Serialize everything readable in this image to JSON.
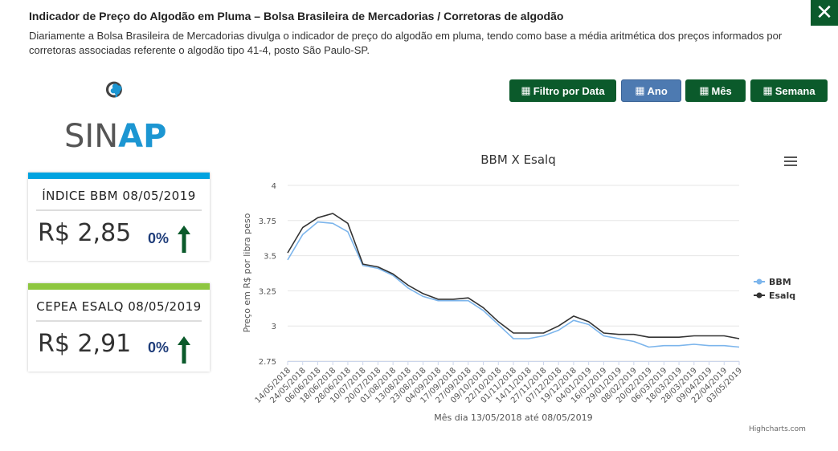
{
  "header": {
    "title": "Indicador de Preço do Algodão em Pluma – Bolsa Brasileira de Mercadorias / Corretoras de algodão",
    "description": "Diariamente a Bolsa Brasileira de Mercadorias divulga o indicador de preço do algodão em pluma, tendo como base a média aritmética dos preços informados por corretoras associadas referente o algodão tipo 41-4, posto São Paulo-SP.",
    "close_label": "✕"
  },
  "logo": {
    "sin": "SIN",
    "ap": "AP"
  },
  "cards": [
    {
      "title": "ÍNDICE BBM 08/05/2019",
      "value": "R$ 2,85",
      "change": "0%",
      "trend": "up-arrow-icon",
      "accent": "#00a3e0"
    },
    {
      "title": "CEPEA ESALQ 08/05/2019",
      "value": "R$ 2,91",
      "change": "0%",
      "trend": "up-arrow-icon",
      "accent": "#8dc63f"
    }
  ],
  "filters": {
    "date": "Filtro por Data",
    "year": "Ano",
    "month": "Mês",
    "week": "Semana",
    "active": "year"
  },
  "colors": {
    "bbm": "#7cb5ec",
    "esalq": "#333333",
    "green": "#0b5a2b",
    "active": "#4d7ab1"
  },
  "chart_data": {
    "type": "line",
    "title": "BBM X Esalq",
    "xlabel": "Mês dia 13/05/2018 até 08/05/2019",
    "ylabel": "Preço em R$ por libra peso",
    "ylim": [
      2.75,
      4
    ],
    "yticks": [
      "4",
      "3.75",
      "3.5",
      "3.25",
      "3",
      "2.75"
    ],
    "ytick_values": [
      4,
      3.75,
      3.5,
      3.25,
      3,
      2.75
    ],
    "legend_position": "right",
    "credit": "Highcharts.com",
    "x": [
      "14/05/2018",
      "24/05/2018",
      "06/06/2018",
      "18/06/2018",
      "28/06/2018",
      "10/07/2018",
      "20/07/2018",
      "01/08/2018",
      "13/08/2018",
      "23/08/2018",
      "04/09/2018",
      "17/09/2018",
      "27/09/2018",
      "09/10/2018",
      "22/10/2018",
      "01/11/2018",
      "14/11/2018",
      "27/11/2018",
      "07/12/2018",
      "19/12/2018",
      "04/01/2019",
      "16/01/2019",
      "29/01/2019",
      "08/02/2019",
      "20/02/2019",
      "06/03/2019",
      "18/03/2019",
      "28/03/2019",
      "09/04/2019",
      "22/04/2019",
      "03/05/2019"
    ],
    "series": [
      {
        "name": "BBM",
        "values": [
          3.47,
          3.65,
          3.74,
          3.73,
          3.67,
          3.43,
          3.41,
          3.36,
          3.27,
          3.21,
          3.18,
          3.18,
          3.18,
          3.11,
          3.01,
          2.91,
          2.91,
          2.93,
          2.97,
          3.04,
          3.01,
          2.93,
          2.91,
          2.89,
          2.85,
          2.86,
          2.86,
          2.87,
          2.86,
          2.86,
          2.85
        ]
      },
      {
        "name": "Esalq",
        "values": [
          3.52,
          3.7,
          3.77,
          3.8,
          3.73,
          3.44,
          3.42,
          3.37,
          3.29,
          3.23,
          3.19,
          3.19,
          3.2,
          3.13,
          3.03,
          2.95,
          2.95,
          2.95,
          3.0,
          3.07,
          3.03,
          2.95,
          2.94,
          2.94,
          2.92,
          2.92,
          2.92,
          2.93,
          2.93,
          2.93,
          2.91
        ]
      }
    ]
  }
}
